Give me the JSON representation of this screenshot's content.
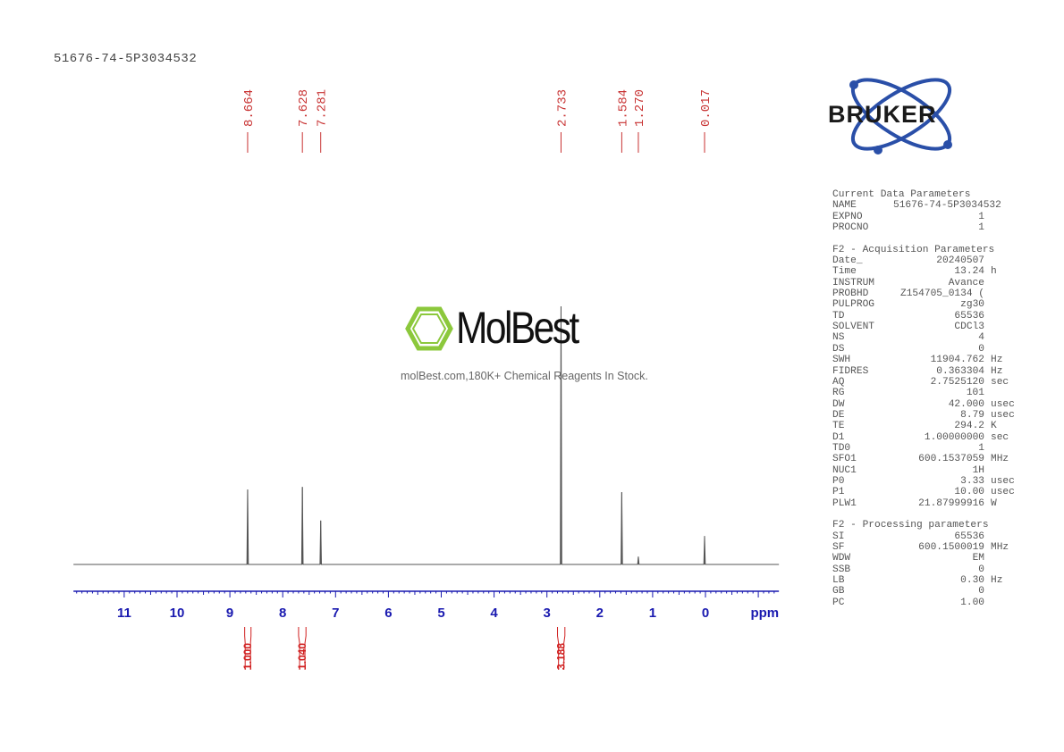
{
  "title": "51676-74-5P3034532",
  "logo": {
    "brand": "BRUKER",
    "color": "#2a4fa8"
  },
  "watermark": {
    "brand": "MolBest",
    "tagline": "molBest.com,180K+ Chemical Reagents In Stock.",
    "color": "#8cc83c"
  },
  "params": {
    "current_header": "Current Data Parameters",
    "current": [
      [
        "NAME",
        "51676-74-5P3034532",
        ""
      ],
      [
        "EXPNO",
        "1",
        ""
      ],
      [
        "PROCNO",
        "1",
        ""
      ]
    ],
    "acq_header": "F2 - Acquisition Parameters",
    "acq": [
      [
        "Date_",
        "20240507",
        ""
      ],
      [
        "Time",
        "13.24",
        "h"
      ],
      [
        "INSTRUM",
        "Avance",
        ""
      ],
      [
        "PROBHD",
        "Z154705_0134 (",
        ""
      ],
      [
        "PULPROG",
        "zg30",
        ""
      ],
      [
        "TD",
        "65536",
        ""
      ],
      [
        "SOLVENT",
        "CDCl3",
        ""
      ],
      [
        "NS",
        "4",
        ""
      ],
      [
        "DS",
        "0",
        ""
      ],
      [
        "SWH",
        "11904.762",
        "Hz"
      ],
      [
        "FIDRES",
        "0.363304",
        "Hz"
      ],
      [
        "AQ",
        "2.7525120",
        "sec"
      ],
      [
        "RG",
        "101",
        ""
      ],
      [
        "DW",
        "42.000",
        "usec"
      ],
      [
        "DE",
        "8.79",
        "usec"
      ],
      [
        "TE",
        "294.2",
        "K"
      ],
      [
        "D1",
        "1.00000000",
        "sec"
      ],
      [
        "TD0",
        "1",
        ""
      ],
      [
        "SFO1",
        "600.1537059",
        "MHz"
      ],
      [
        "NUC1",
        "1H",
        ""
      ],
      [
        "P0",
        "3.33",
        "usec"
      ],
      [
        "P1",
        "10.00",
        "usec"
      ],
      [
        "PLW1",
        "21.87999916",
        "W"
      ]
    ],
    "proc_header": "F2 - Processing parameters",
    "proc": [
      [
        "SI",
        "65536",
        ""
      ],
      [
        "SF",
        "600.1500019",
        "MHz"
      ],
      [
        "WDW",
        "EM",
        ""
      ],
      [
        "SSB",
        "0",
        ""
      ],
      [
        "LB",
        "0.30",
        "Hz"
      ],
      [
        "GB",
        "0",
        ""
      ],
      [
        "PC",
        "1.00",
        ""
      ]
    ]
  },
  "chart_data": {
    "type": "line",
    "xlabel": "ppm",
    "xlim": [
      11.96,
      -1.39
    ],
    "x_reversed": true,
    "x_ticks": [
      "11",
      "10",
      "9",
      "8",
      "7",
      "6",
      "5",
      "4",
      "3",
      "2",
      "1",
      "0"
    ],
    "grid": false,
    "peaks": [
      {
        "ppm": 8.664,
        "label": "8.664",
        "intensity": 29
      },
      {
        "ppm": 7.628,
        "label": "7.628",
        "intensity": 30
      },
      {
        "ppm": 7.281,
        "label": "7.281",
        "intensity": 17
      },
      {
        "ppm": 2.733,
        "label": "2.733",
        "intensity": 100
      },
      {
        "ppm": 1.584,
        "label": "1.584",
        "intensity": 28
      },
      {
        "ppm": 1.27,
        "label": "1.270",
        "intensity": 3
      },
      {
        "ppm": 0.017,
        "label": "0.017",
        "intensity": 11
      }
    ],
    "integrals": [
      {
        "from": 8.72,
        "to": 8.6,
        "value": "1.000"
      },
      {
        "from": 7.7,
        "to": 7.56,
        "value": "1.040"
      },
      {
        "from": 2.8,
        "to": 2.66,
        "value": "3.188"
      }
    ],
    "colors": {
      "spectrum": "#555555",
      "axis": "#1a1ab0",
      "labels": "#c83232"
    }
  }
}
